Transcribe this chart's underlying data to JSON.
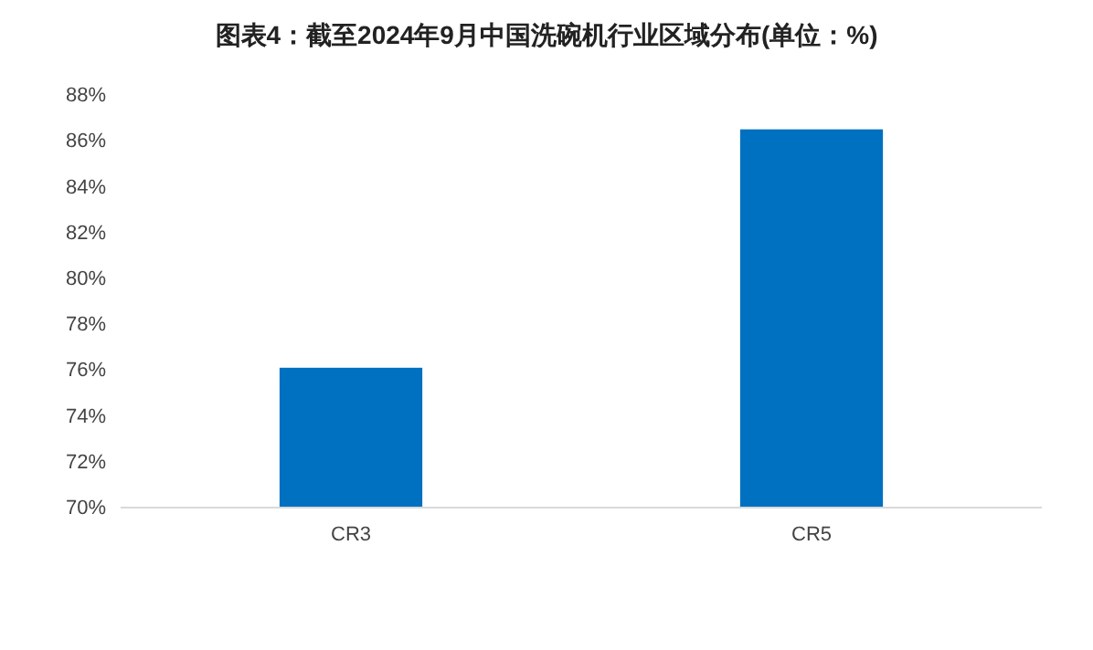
{
  "chart_data": {
    "type": "bar",
    "title": "图表4：截至2024年9月中国洗碗机行业区域分布(单位：%)",
    "categories": [
      "CR3",
      "CR5"
    ],
    "values": [
      76.1,
      86.5
    ],
    "color": "#0070c0",
    "ylim": [
      70,
      88
    ],
    "yticks": [
      {
        "value": 70,
        "label": "70%"
      },
      {
        "value": 72,
        "label": "72%"
      },
      {
        "value": 74,
        "label": "74%"
      },
      {
        "value": 76,
        "label": "76%"
      },
      {
        "value": 78,
        "label": "78%"
      },
      {
        "value": 80,
        "label": "80%"
      },
      {
        "value": 82,
        "label": "82%"
      },
      {
        "value": 84,
        "label": "84%"
      },
      {
        "value": 86,
        "label": "86%"
      },
      {
        "value": 88,
        "label": "88%"
      }
    ],
    "grid": false
  }
}
